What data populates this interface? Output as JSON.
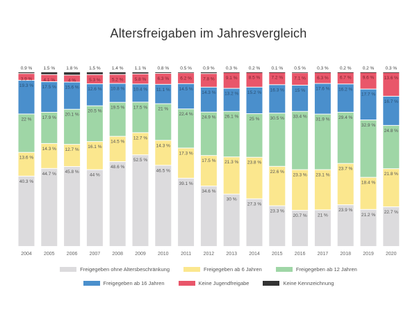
{
  "chart_data": {
    "type": "bar",
    "stacked": true,
    "title": "Altersfreigaben im Jahresvergleich",
    "xlabel": "",
    "ylabel": "",
    "ylim": [
      0,
      100
    ],
    "unit": "%",
    "grid": false,
    "legend_position": "bottom",
    "categories": [
      "2004",
      "2005",
      "2006",
      "2007",
      "2008",
      "2009",
      "2010",
      "2011",
      "2012",
      "2013",
      "2014",
      "2015",
      "2016",
      "2017",
      "2018",
      "2019",
      "2020"
    ],
    "series": [
      {
        "name": "Freigegeben ohne Altersbeschränkung",
        "color": "#dcdbdd",
        "values": [
          40.3,
          44.7,
          45.8,
          44,
          48.6,
          52.5,
          46.5,
          39.1,
          34.6,
          30,
          27.3,
          23.3,
          20.7,
          21,
          23.9,
          21.2,
          22.7
        ]
      },
      {
        "name": "Freigegeben ab 6 Jahren",
        "color": "#fbe78e",
        "values": [
          13.6,
          14.3,
          12.7,
          16.1,
          14.5,
          12.7,
          14.3,
          17.3,
          17.5,
          21.3,
          23.8,
          22.6,
          23.3,
          23.1,
          23.7,
          18.4,
          21.8
        ]
      },
      {
        "name": "Freigegeben ab 12 Jahren",
        "color": "#9fd6a6",
        "values": [
          22,
          17.9,
          20.1,
          20.5,
          19.5,
          17.5,
          21,
          22.4,
          24.9,
          26.1,
          25,
          30.5,
          33.4,
          31.9,
          29.4,
          32.9,
          24.8
        ]
      },
      {
        "name": "Freigegeben ab 16 Jahren",
        "color": "#4a8fcc",
        "values": [
          19.3,
          17.5,
          15.6,
          12.6,
          10.8,
          10.4,
          11.1,
          14.5,
          14.3,
          13.2,
          15.2,
          16.3,
          15,
          17.6,
          16.2,
          17.7,
          16.7
        ]
      },
      {
        "name": "Keine Jugendfreigabe",
        "color": "#e9566a",
        "values": [
          3.9,
          4.1,
          4,
          5.3,
          5.2,
          5.8,
          6.3,
          6.2,
          7.8,
          9.1,
          8.5,
          7.2,
          7.1,
          6.3,
          6.7,
          9.6,
          13.6
        ]
      },
      {
        "name": "Keine Kennzeichnung",
        "color": "#333333",
        "values": [
          0.9,
          1.5,
          1.8,
          1.5,
          1.4,
          1.1,
          0.8,
          0.5,
          0.9,
          0.3,
          0.2,
          0.1,
          0.5,
          0.3,
          0.2,
          0.2,
          0.3
        ]
      }
    ]
  }
}
